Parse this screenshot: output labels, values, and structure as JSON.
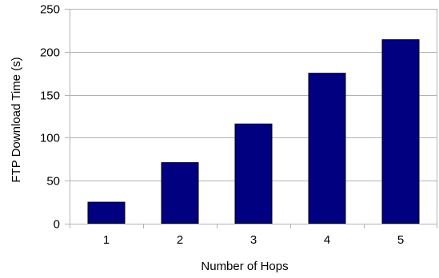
{
  "chart_data": {
    "type": "bar",
    "categories": [
      "1",
      "2",
      "3",
      "4",
      "5"
    ],
    "series": [
      {
        "values": [
          25,
          71,
          116,
          175,
          214
        ]
      }
    ],
    "title": "",
    "xlabel": "Number of Hops",
    "ylabel": "FTP Download Time (s)",
    "ylim": [
      0,
      250
    ],
    "yticks": [
      "0",
      "50",
      "100",
      "150",
      "200",
      "250"
    ],
    "grid": "horizontal",
    "legend": "none",
    "bar_color": "#000080",
    "grid_color": "#b3b3b3"
  }
}
